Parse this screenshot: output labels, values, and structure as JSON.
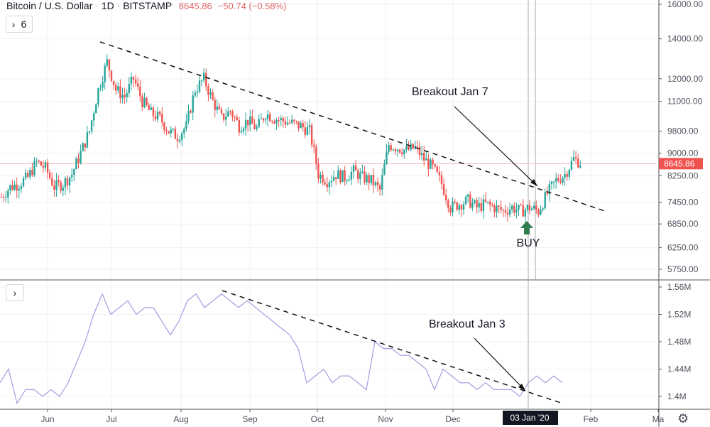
{
  "header": {
    "symbol": "Bitcoin / U.S. Dollar",
    "interval": "1D",
    "exchange": "BITSTAMP",
    "price": "8645.86",
    "change": "−50.74 (−0.58%)"
  },
  "indicators_button": {
    "label": "6"
  },
  "colors": {
    "up": "#26a69a",
    "down": "#ef5350",
    "volume_line": "#a99ce0",
    "buy": "#2e7d4f",
    "price_tag": "#ef5350"
  },
  "chart_data": [
    {
      "type": "candlestick",
      "title": "Bitcoin / U.S. Dollar · 1D · BITSTAMP",
      "scale": "log",
      "ylim": [
        5750,
        16000
      ],
      "yticks": [
        "16000.00",
        "14000.00",
        "12000.00",
        "11000.00",
        "9800.00",
        "9000.00",
        "8250.00",
        "7450.00",
        "6850.00",
        "6250.00",
        "5750.00"
      ],
      "ytick_values": [
        16000,
        14000,
        12000,
        11000,
        9800,
        9000,
        8250,
        7450,
        6850,
        6250,
        5750
      ],
      "last_price_label": "8645.86",
      "start": "2019-05-10",
      "step_days": 4,
      "closes": [
        7600,
        7900,
        8000,
        8200,
        8700,
        8500,
        7900,
        8000,
        8300,
        9000,
        9800,
        11500,
        12800,
        11500,
        11200,
        12000,
        11000,
        10500,
        10300,
        9800,
        9600,
        10000,
        11500,
        12000,
        11000,
        10300,
        10600,
        10000,
        10200,
        9900,
        10500,
        10300,
        10200,
        10100,
        10000,
        9800,
        8300,
        8100,
        8300,
        8200,
        8400,
        8200,
        8100,
        7800,
        9300,
        9200,
        9100,
        9200,
        8800,
        8500,
        8000,
        7300,
        7400,
        7500,
        7300,
        7400,
        7300,
        7200,
        7300,
        7200,
        7300,
        7200,
        7700,
        8100,
        8300,
        8800,
        8650
      ],
      "annotations": [
        {
          "text": "Breakout Jan 7"
        },
        {
          "text": "BUY"
        }
      ]
    },
    {
      "type": "line",
      "ylim": [
        1.38,
        1.57
      ],
      "yticks": [
        "1.56M",
        "1.52M",
        "1.48M",
        "1.44M",
        "1.4M"
      ],
      "ytick_values": [
        1.56,
        1.52,
        1.48,
        1.44,
        1.4
      ],
      "start": "2019-05-10",
      "step_days": 4,
      "values": [
        1.42,
        1.44,
        1.39,
        1.41,
        1.41,
        1.4,
        1.41,
        1.4,
        1.42,
        1.45,
        1.48,
        1.52,
        1.55,
        1.52,
        1.53,
        1.54,
        1.52,
        1.53,
        1.53,
        1.51,
        1.49,
        1.51,
        1.54,
        1.55,
        1.53,
        1.54,
        1.55,
        1.54,
        1.53,
        1.54,
        1.53,
        1.52,
        1.51,
        1.5,
        1.49,
        1.47,
        1.42,
        1.43,
        1.44,
        1.42,
        1.43,
        1.43,
        1.42,
        1.41,
        1.48,
        1.47,
        1.47,
        1.46,
        1.46,
        1.45,
        1.44,
        1.41,
        1.44,
        1.43,
        1.42,
        1.42,
        1.41,
        1.42,
        1.41,
        1.41,
        1.41,
        1.4,
        1.42,
        1.43,
        1.42,
        1.43,
        1.42
      ],
      "annotations": [
        {
          "text": "Breakout Jan 3"
        }
      ]
    }
  ],
  "xaxis": {
    "ticks": [
      "Jun",
      "Jul",
      "Aug",
      "Sep",
      "Oct",
      "Nov",
      "Dec",
      "Feb",
      "Ma"
    ],
    "crosshair_label": "03 Jan '20"
  },
  "lower_button": {
    "label": ""
  }
}
